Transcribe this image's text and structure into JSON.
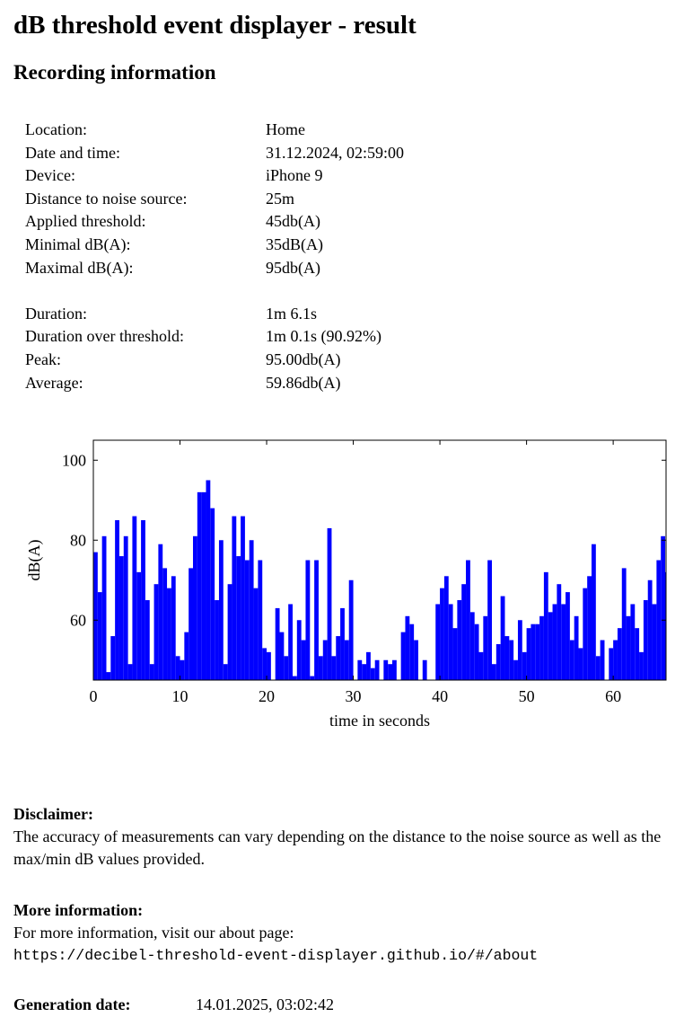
{
  "header": {
    "title": "dB threshold event displayer - result",
    "subtitle": "Recording information"
  },
  "info": [
    {
      "label": "Location:",
      "value": "Home"
    },
    {
      "label": "Date and time:",
      "value": "31.12.2024, 02:59:00"
    },
    {
      "label": "Device:",
      "value": "iPhone 9"
    },
    {
      "label": "Distance to noise source:",
      "value": "25m"
    },
    {
      "label": "Applied threshold:",
      "value": "45db(A)"
    },
    {
      "label": "Minimal dB(A):",
      "value": "35dB(A)"
    },
    {
      "label": "Maximal dB(A):",
      "value": "95db(A)"
    }
  ],
  "stats": [
    {
      "label": "Duration:",
      "value": "1m 6.1s"
    },
    {
      "label": "Duration over threshold:",
      "value": "1m 0.1s (90.92%)"
    },
    {
      "label": "Peak:",
      "value": "95.00db(A)"
    },
    {
      "label": "Average:",
      "value": "59.86db(A)"
    }
  ],
  "chart_data": {
    "type": "bar",
    "x_label": "time in seconds",
    "y_label": "dB(A)",
    "color": "#0000ff",
    "xlim": [
      0,
      66.1
    ],
    "ylim": [
      45,
      105
    ],
    "xticks": [
      0,
      10,
      20,
      30,
      40,
      50,
      60
    ],
    "yticks": [
      60,
      80,
      100
    ],
    "x": [
      0,
      0.5,
      1,
      1.5,
      2,
      2.5,
      3,
      3.5,
      4,
      4.5,
      5,
      5.5,
      6,
      6.5,
      7,
      7.5,
      8,
      8.5,
      9,
      9.5,
      10,
      10.5,
      11,
      11.5,
      12,
      12.5,
      13,
      13.5,
      14,
      14.5,
      15,
      15.5,
      16,
      16.5,
      17,
      17.5,
      18,
      18.5,
      19,
      19.5,
      20,
      20.5,
      21,
      21.5,
      22,
      22.5,
      23,
      23.5,
      24,
      24.5,
      25,
      25.5,
      26,
      26.5,
      27,
      27.5,
      28,
      28.5,
      29,
      29.5,
      30,
      30.5,
      31,
      31.5,
      32,
      32.5,
      33,
      33.5,
      34,
      34.5,
      35,
      35.5,
      36,
      36.5,
      37,
      37.5,
      38,
      38.5,
      39,
      39.5,
      40,
      40.5,
      41,
      41.5,
      42,
      42.5,
      43,
      43.5,
      44,
      44.5,
      45,
      45.5,
      46,
      46.5,
      47,
      47.5,
      48,
      48.5,
      49,
      49.5,
      50,
      50.5,
      51,
      51.5,
      52,
      52.5,
      53,
      53.5,
      54,
      54.5,
      55,
      55.5,
      56,
      56.5,
      57,
      57.5,
      58,
      58.5,
      59,
      59.5,
      60,
      60.5,
      61,
      61.5,
      62,
      62.5,
      63,
      63.5,
      64,
      64.5,
      65,
      65.5,
      66
    ],
    "values": [
      77,
      67,
      81,
      47,
      56,
      85,
      76,
      81,
      49,
      86,
      72,
      85,
      65,
      49,
      69,
      79,
      73,
      68,
      71,
      51,
      50,
      57,
      73,
      81,
      92,
      92,
      95,
      88,
      65,
      80,
      49,
      69,
      86,
      76,
      86,
      75,
      80,
      68,
      75,
      53,
      52,
      45,
      63,
      57,
      51,
      64,
      46,
      60,
      55,
      75,
      46,
      75,
      51,
      55,
      83,
      51,
      56,
      63,
      55,
      70,
      45,
      50,
      49,
      52,
      48,
      50,
      45,
      50,
      49,
      50,
      45,
      57,
      61,
      59,
      55,
      45,
      50,
      45,
      45,
      64,
      68,
      71,
      64,
      58,
      65,
      69,
      75,
      62,
      59,
      52,
      61,
      75,
      49,
      54,
      66,
      56,
      55,
      50,
      60,
      52,
      58,
      59,
      59,
      61,
      72,
      62,
      64,
      69,
      64,
      67,
      55,
      61,
      53,
      68,
      71,
      79,
      51,
      55,
      45,
      53,
      55,
      58,
      73,
      61,
      64,
      58,
      52,
      65,
      70,
      64,
      75,
      81,
      72
    ]
  },
  "disclaimer": {
    "title": "Disclaimer:",
    "text": "The accuracy of measurements can vary depending on the distance to the noise source as well as the max/min dB values provided."
  },
  "more_info": {
    "title": "More information:",
    "text": "For more information, visit our about page:",
    "url": "https://decibel-threshold-event-displayer.github.io/#/about"
  },
  "generation": {
    "label": "Generation date:",
    "value": "14.01.2025, 03:02:42"
  }
}
